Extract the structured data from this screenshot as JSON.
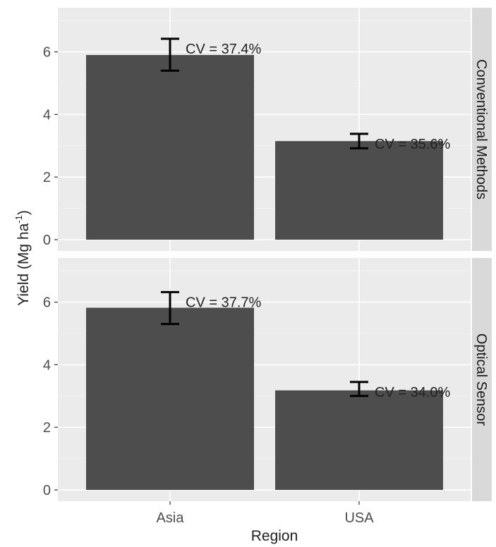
{
  "chart_data": {
    "type": "bar",
    "xlabel": "Region",
    "ylabel": "Yield (Mg ha",
    "ylabel_sup": "-1",
    "ylabel_close": ")",
    "categories": [
      "Asia",
      "USA"
    ],
    "ylim": [
      0,
      7.2
    ],
    "y_ticks": [
      0,
      2,
      4,
      6
    ],
    "y_tick_labels": [
      "0",
      "2",
      "4",
      "6"
    ],
    "grid": true,
    "panels": [
      {
        "strip_label": "Conventional Methods",
        "values": [
          5.9,
          3.15
        ],
        "error_low": [
          5.4,
          2.92
        ],
        "error_high": [
          6.42,
          3.38
        ],
        "labels": [
          "CV = 37.4%",
          "CV = 35.6%"
        ]
      },
      {
        "strip_label": "Optical Sensor",
        "values": [
          5.82,
          3.18
        ],
        "error_low": [
          5.3,
          3.0
        ],
        "error_high": [
          6.32,
          3.45
        ],
        "labels": [
          "CV = 37.7%",
          "CV = 34.0%"
        ]
      }
    ]
  }
}
